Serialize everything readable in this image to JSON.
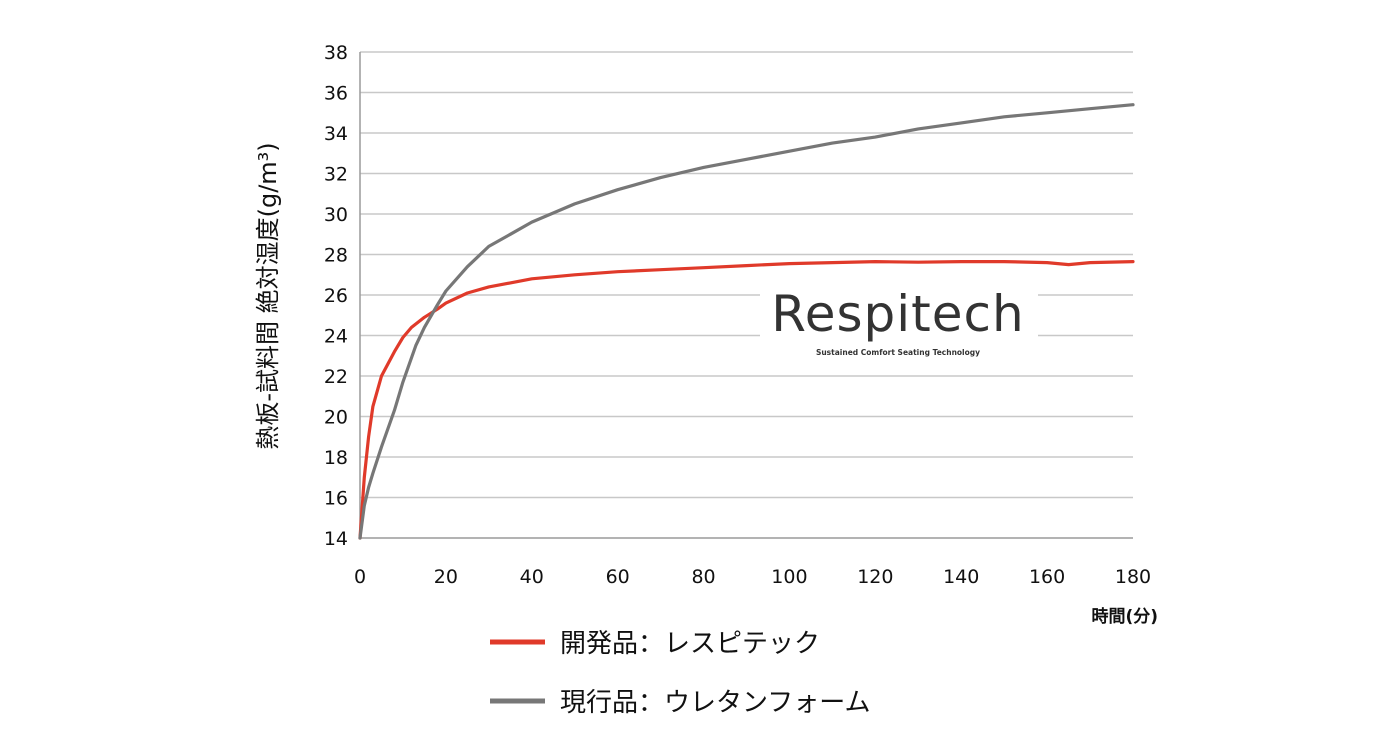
{
  "chart_data": {
    "type": "line",
    "title": "",
    "ylabel": "熱板-試料間 絶対湿度(g/m³)",
    "xlabel": "時間(分)",
    "xlim": [
      0,
      180
    ],
    "ylim": [
      14,
      38
    ],
    "x_ticks": [
      "0",
      "20",
      "40",
      "60",
      "80",
      "100",
      "120",
      "140",
      "160",
      "180"
    ],
    "y_ticks": [
      "14",
      "16",
      "18",
      "20",
      "22",
      "24",
      "26",
      "28",
      "30",
      "32",
      "34",
      "36",
      "38"
    ],
    "grid": "horizontal",
    "legend_position": "bottom",
    "series": [
      {
        "name": "開発品：レスピテック",
        "color": "#e03a2a",
        "x": [
          0,
          1,
          2,
          3,
          5,
          8,
          10,
          12,
          15,
          18,
          20,
          25,
          30,
          35,
          40,
          50,
          60,
          70,
          80,
          90,
          100,
          110,
          120,
          130,
          140,
          150,
          160,
          165,
          170,
          180
        ],
        "y": [
          14,
          17,
          19,
          20.5,
          22,
          23.2,
          23.9,
          24.4,
          24.9,
          25.3,
          25.6,
          26.1,
          26.4,
          26.6,
          26.8,
          27.0,
          27.15,
          27.25,
          27.35,
          27.45,
          27.55,
          27.6,
          27.65,
          27.62,
          27.65,
          27.65,
          27.6,
          27.5,
          27.6,
          27.65
        ]
      },
      {
        "name": "現行品：ウレタンフォーム",
        "color": "#777777",
        "x": [
          0,
          1,
          2,
          3,
          5,
          8,
          10,
          13,
          15,
          18,
          20,
          25,
          30,
          35,
          40,
          50,
          60,
          70,
          80,
          90,
          100,
          110,
          120,
          130,
          140,
          150,
          160,
          170,
          180
        ],
        "y": [
          14,
          15.6,
          16.5,
          17.2,
          18.5,
          20.3,
          21.7,
          23.5,
          24.4,
          25.5,
          26.2,
          27.4,
          28.4,
          29.0,
          29.6,
          30.5,
          31.2,
          31.8,
          32.3,
          32.7,
          33.1,
          33.5,
          33.8,
          34.2,
          34.5,
          34.8,
          35.0,
          35.2,
          35.4
        ]
      }
    ]
  },
  "logo": {
    "name": "Respitech",
    "tagline": "Sustained Comfort Seating Technology"
  }
}
